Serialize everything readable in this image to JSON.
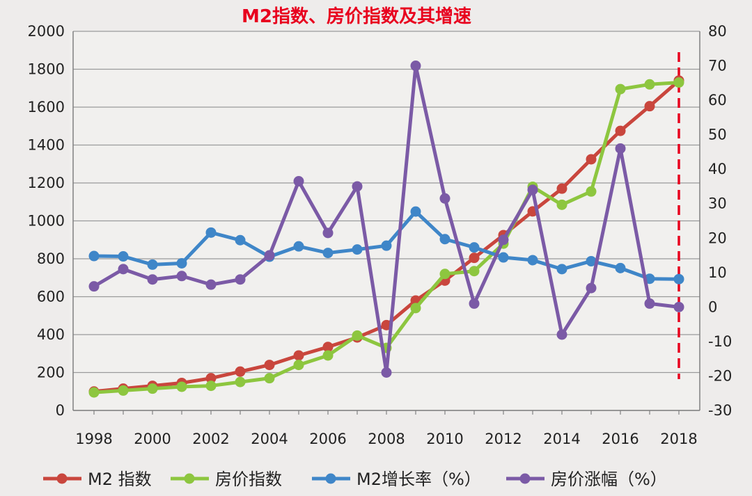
{
  "chart_data": {
    "type": "line",
    "title": "M2指数、房价指数及其增速",
    "x": [
      1998,
      1999,
      2000,
      2001,
      2002,
      2003,
      2004,
      2005,
      2006,
      2007,
      2008,
      2009,
      2010,
      2011,
      2012,
      2013,
      2014,
      2015,
      2016,
      2017,
      2018
    ],
    "x_tick_labels": [
      "1998",
      "2000",
      "2002",
      "2004",
      "2006",
      "2008",
      "2010",
      "2012",
      "2014",
      "2016",
      "2018"
    ],
    "y_left_ticks": [
      "0",
      "200",
      "400",
      "600",
      "800",
      "1000",
      "1200",
      "1400",
      "1600",
      "1800",
      "2000"
    ],
    "y_right_ticks": [
      "-30",
      "-20",
      "-10",
      "0",
      "10",
      "20",
      "30",
      "40",
      "50",
      "60",
      "70",
      "80"
    ],
    "ylim_left": [
      0,
      2000
    ],
    "ylim_right": [
      -30,
      80
    ],
    "grid": true,
    "legend_position": "bottom",
    "marker_year": 2018,
    "colors": {
      "title": "#e8001e",
      "marker_line": "#e8001e",
      "grid": "#9a9a9a",
      "axis": "#808080"
    },
    "series": [
      {
        "name": "M2 指数",
        "axis": "left",
        "color": "#c9463d",
        "values": [
          100,
          115,
          130,
          145,
          170,
          205,
          240,
          290,
          335,
          385,
          450,
          580,
          685,
          805,
          925,
          1050,
          1170,
          1325,
          1475,
          1605,
          1740
        ]
      },
      {
        "name": "房价指数",
        "axis": "left",
        "color": "#8dc63f",
        "values": [
          95,
          105,
          115,
          125,
          130,
          150,
          170,
          240,
          290,
          395,
          330,
          540,
          720,
          735,
          880,
          1180,
          1085,
          1155,
          1695,
          1720,
          1730
        ]
      },
      {
        "name": "M2增长率（%）",
        "axis": "right",
        "color": "#3f86c8",
        "values": [
          14.8,
          14.7,
          12.3,
          12.7,
          21.6,
          19.4,
          14.6,
          17.6,
          15.7,
          16.7,
          17.8,
          27.7,
          19.7,
          17.3,
          14.4,
          13.6,
          11.0,
          13.3,
          11.3,
          8.2,
          8.1
        ]
      },
      {
        "name": "房价涨幅（%）",
        "axis": "right",
        "color": "#7b5aa6",
        "values": [
          6,
          11,
          8,
          9,
          6.5,
          8,
          15,
          36.5,
          21.5,
          35,
          -19,
          70,
          31.5,
          1,
          19.5,
          34,
          -8,
          5.5,
          46,
          1,
          0
        ]
      }
    ]
  }
}
